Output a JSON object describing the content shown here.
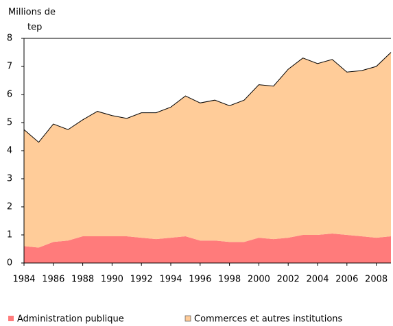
{
  "chart_data": {
    "type": "stacked_area",
    "ylabel": [
      "Millions de",
      "tep"
    ],
    "x": [
      1984,
      1985,
      1986,
      1987,
      1988,
      1989,
      1990,
      1991,
      1992,
      1993,
      1994,
      1995,
      1996,
      1997,
      1998,
      1999,
      2000,
      2001,
      2002,
      2003,
      2004,
      2005,
      2006,
      2007,
      2008,
      2009
    ],
    "xlim": [
      1984,
      2009
    ],
    "xticks": [
      1984,
      1986,
      1988,
      1990,
      1992,
      1994,
      1996,
      1998,
      2000,
      2002,
      2004,
      2006,
      2008
    ],
    "ylim": [
      0,
      8
    ],
    "yticks": [
      0,
      1,
      2,
      3,
      4,
      5,
      6,
      7,
      8
    ],
    "series": [
      {
        "name": "Administration publique",
        "color": "#ff7b7b",
        "values": [
          0.6,
          0.55,
          0.75,
          0.8,
          0.95,
          0.95,
          0.95,
          0.95,
          0.9,
          0.85,
          0.9,
          0.95,
          0.8,
          0.8,
          0.75,
          0.75,
          0.9,
          0.85,
          0.9,
          1.0,
          1.0,
          1.05,
          1.0,
          0.95,
          0.9,
          0.95
        ]
      },
      {
        "name": "Commerces et autres institutions",
        "color": "#ffcc99",
        "values": [
          4.15,
          3.75,
          4.2,
          3.95,
          4.15,
          4.45,
          4.3,
          4.2,
          4.45,
          4.5,
          4.65,
          5.0,
          4.9,
          5.0,
          4.85,
          5.05,
          5.45,
          5.45,
          6.0,
          6.3,
          6.1,
          6.2,
          5.8,
          5.9,
          6.1,
          6.55
        ]
      }
    ]
  }
}
